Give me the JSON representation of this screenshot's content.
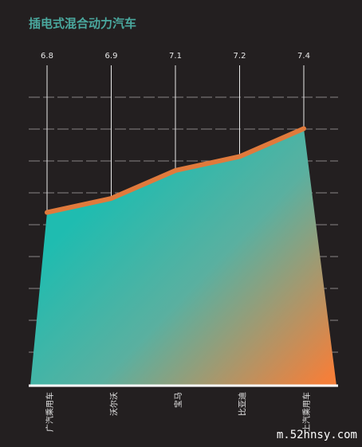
{
  "chart_data": {
    "type": "area",
    "title": "插电式混合动力汽车",
    "categories": [
      "广汽乘用车",
      "沃尔沃",
      "宝马",
      "比亚迪",
      "上汽乘用车"
    ],
    "values": [
      6.8,
      6.9,
      7.1,
      7.2,
      7.4
    ],
    "ylim": [
      5.56,
      7.75
    ],
    "line_color": "#e07a3c",
    "gradient": [
      "#1fbcb0",
      "#f47f3a"
    ],
    "watermark": "m.52hnsy.com"
  }
}
